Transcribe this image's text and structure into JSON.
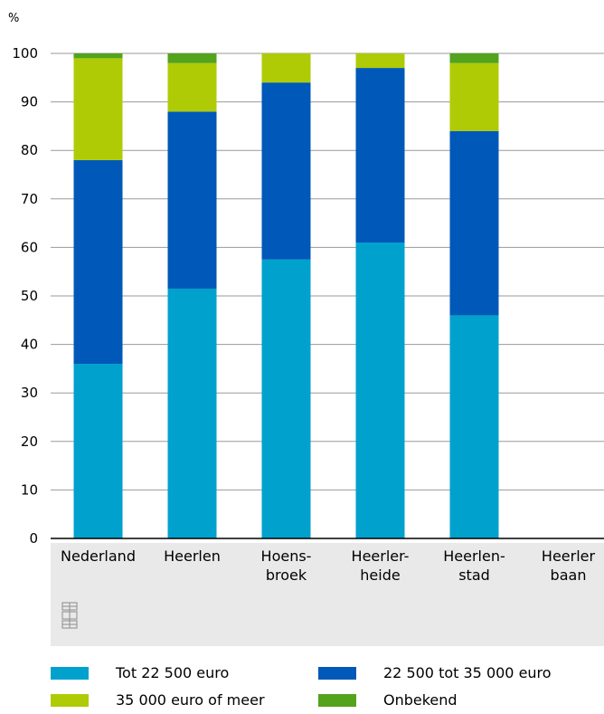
{
  "chart_data": {
    "type": "bar",
    "stacked": true,
    "ylabel": "%",
    "ylim": [
      0,
      100
    ],
    "yticks": [
      0,
      10,
      20,
      30,
      40,
      50,
      60,
      70,
      80,
      90,
      100
    ],
    "grid": true,
    "categories": [
      [
        "Nederland"
      ],
      [
        "Heerlen"
      ],
      [
        "Hoens-",
        "broek"
      ],
      [
        "Heerler-",
        "heide"
      ],
      [
        "Heerlen-",
        "stad"
      ],
      [
        "Heerler",
        "baan"
      ]
    ],
    "series": [
      {
        "name": "Tot 22 500 euro",
        "color": "#00a1cd",
        "values": [
          36,
          51.5,
          57.5,
          61,
          46,
          null
        ]
      },
      {
        "name": "22 500 tot 35 000 euro",
        "color": "#0058b8",
        "values": [
          42,
          36.5,
          36.5,
          36,
          38,
          null
        ]
      },
      {
        "name": "35 000 euro of meer",
        "color": "#afcb05",
        "values": [
          21,
          10,
          6,
          3,
          14,
          null
        ]
      },
      {
        "name": "Onbekend",
        "color": "#53a31d",
        "values": [
          1,
          2,
          0,
          0,
          2,
          null
        ]
      }
    ],
    "legend_position": "bottom"
  }
}
